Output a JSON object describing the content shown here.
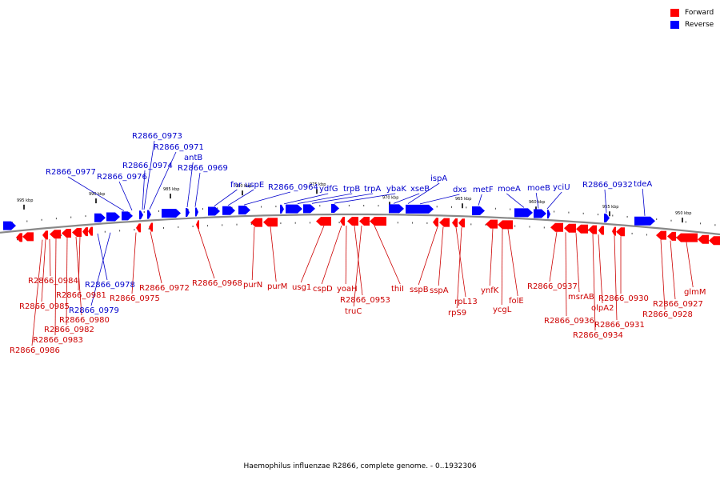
{
  "legend": {
    "forward": {
      "label": "Forward",
      "color": "#ff0000"
    },
    "reverse": {
      "label": "Reverse",
      "color": "#0000ff"
    }
  },
  "caption": "Haemophilus influenzae R2866, complete genome. - 0..1932306",
  "colors": {
    "forward_text": "#cc0000",
    "reverse_text": "#0000cc",
    "backbone": "#888888"
  },
  "kbp_ticks": [
    "995 kbp",
    "990 kbp",
    "985 kbp",
    "980 kbp",
    "975 kbp",
    "970 kbp",
    "965 kbp",
    "960 kbp",
    "955 kbp",
    "950 kbp"
  ],
  "reverse_genes": [
    "R2866_0973",
    "R2866_0971",
    "antB",
    "R2866_0974",
    "R2866_0969",
    "R2866_0977",
    "R2866_0976",
    "fnr",
    "uspE",
    "R2866_0964",
    "ydfG",
    "trpB",
    "trpA",
    "ybaK",
    "xseB",
    "ispA",
    "dxs",
    "metF",
    "moeA",
    "moeB",
    "yciU",
    "R2866_0932",
    "tdeA",
    "R2866_0978",
    "R2866_0979"
  ],
  "forward_genes": [
    "R2866_0984",
    "R2866_0985",
    "R2866_0981",
    "R2866_0980",
    "R2866_0982",
    "R2866_0983",
    "R2866_0986",
    "R2866_0975",
    "R2866_0972",
    "R2866_0968",
    "purN",
    "purM",
    "usg1",
    "cspD",
    "yoaH",
    "R2866_0953",
    "truC",
    "thiI",
    "sspB",
    "sspA",
    "rpL13",
    "rpS9",
    "ynfK",
    "ycgL",
    "folE",
    "R2866_0937",
    "R2866_0936",
    "msrAB",
    "olpA2",
    "R2866_0934",
    "R2866_0930",
    "R2866_0931",
    "glmM",
    "R2866_0927",
    "R2866_0928"
  ]
}
